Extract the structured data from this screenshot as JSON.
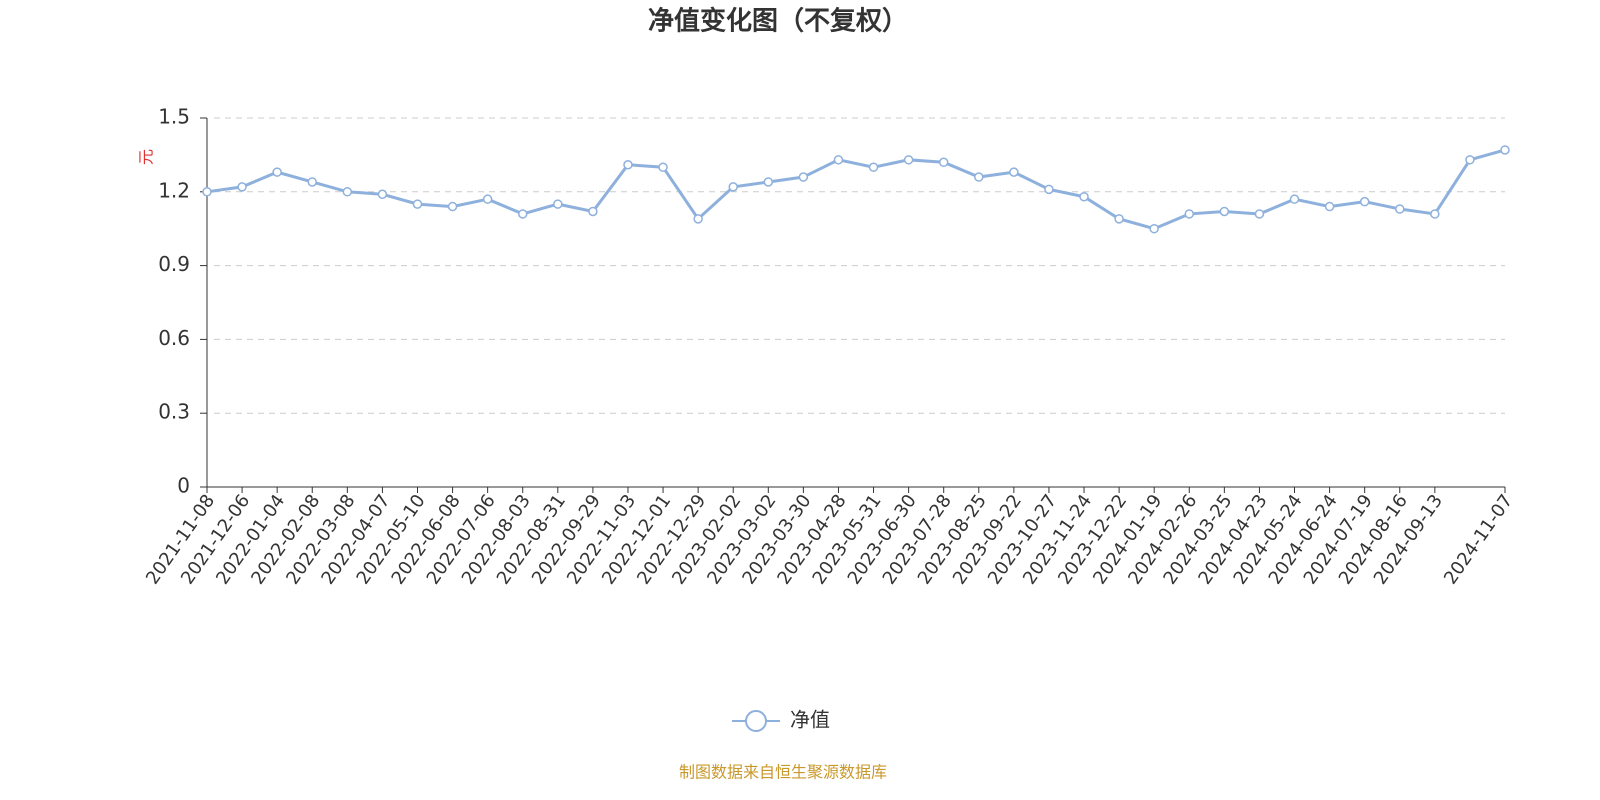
{
  "chart_data": {
    "type": "line",
    "title": "净值变化图（不复权）",
    "y_label": "元",
    "source": "制图数据来自恒生聚源数据库",
    "categories": [
      "2021-11-08",
      "2021-12-06",
      "2022-01-04",
      "2022-02-08",
      "2022-03-08",
      "2022-04-07",
      "2022-05-10",
      "2022-06-08",
      "2022-07-06",
      "2022-08-03",
      "2022-08-31",
      "2022-09-29",
      "2022-11-03",
      "2022-12-01",
      "2022-12-29",
      "2023-02-02",
      "2023-03-02",
      "2023-03-30",
      "2023-04-28",
      "2023-05-31",
      "2023-06-30",
      "2023-07-28",
      "2023-08-25",
      "2023-09-22",
      "2023-10-27",
      "2023-11-24",
      "2023-12-22",
      "2024-01-19",
      "2024-02-26",
      "2024-03-25",
      "2024-04-23",
      "2024-05-24",
      "2024-06-24",
      "2024-07-19",
      "2024-08-16",
      "2024-09-13",
      null,
      "2024-11-07"
    ],
    "series": [
      {
        "name": "净值",
        "color": "#8eb0dc",
        "values": [
          1.2,
          1.22,
          1.28,
          1.24,
          1.2,
          1.19,
          1.15,
          1.14,
          1.17,
          1.11,
          1.15,
          1.12,
          1.31,
          1.3,
          1.09,
          1.22,
          1.24,
          1.26,
          1.33,
          1.3,
          1.33,
          1.32,
          1.26,
          1.28,
          1.21,
          1.18,
          1.09,
          1.05,
          1.11,
          1.12,
          1.11,
          1.17,
          1.14,
          1.16,
          1.13,
          1.11,
          1.33,
          1.37
        ]
      }
    ],
    "ylim": [
      0,
      1.5
    ],
    "yticks": [
      0,
      0.3,
      0.6,
      0.9,
      1.2,
      1.5
    ],
    "grid": true
  }
}
